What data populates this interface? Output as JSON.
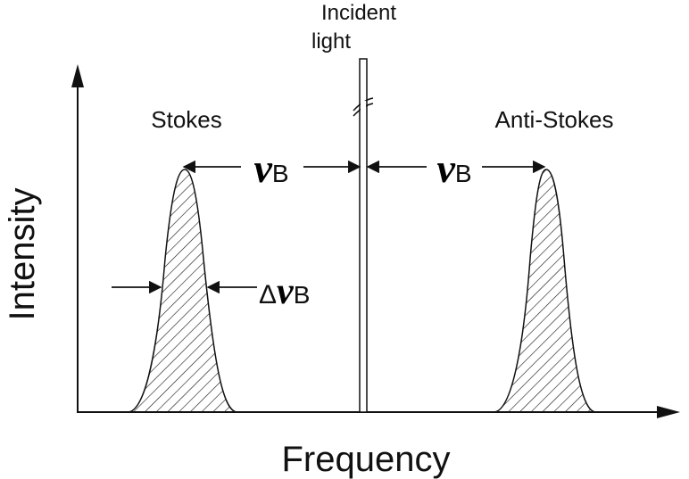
{
  "axes": {
    "y_label": "Intensity",
    "x_label": "Frequency"
  },
  "incident": {
    "line1": "Incident",
    "line2": "light"
  },
  "peaks": {
    "stokes_label": "Stokes",
    "anti_stokes_label": "Anti-Stokes"
  },
  "symbols": {
    "nu": "ν",
    "sub_b": "B",
    "delta": "Δ"
  },
  "colors": {
    "ink": "#111111",
    "background": "#ffffff"
  }
}
